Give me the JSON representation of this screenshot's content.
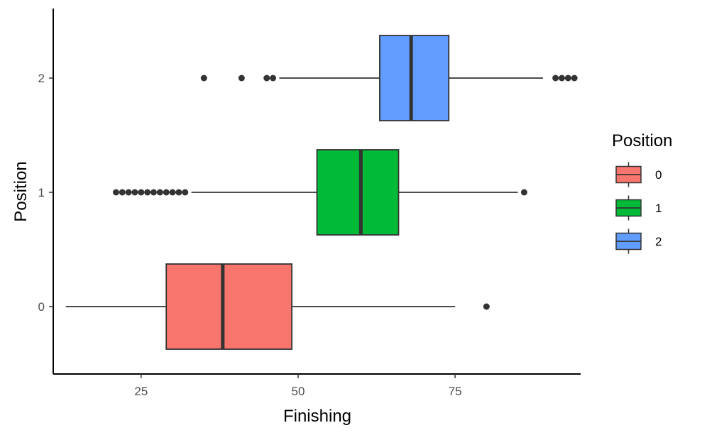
{
  "chart_data": {
    "type": "boxplot",
    "orientation": "horizontal",
    "xlabel": "Finishing",
    "ylabel": "Position",
    "xlim": [
      11,
      95
    ],
    "x_ticks": [
      25,
      50,
      75
    ],
    "y_categories": [
      "0",
      "1",
      "2"
    ],
    "grid": false,
    "legend": {
      "title": "Position",
      "placement": "right",
      "entries": [
        {
          "label": "0",
          "color": "#F8766D"
        },
        {
          "label": "1",
          "color": "#00BA38"
        },
        {
          "label": "2",
          "color": "#619CFF"
        }
      ]
    },
    "series": [
      {
        "category": "0",
        "color": "#F8766D",
        "whisker_low": 13,
        "q1": 29,
        "median": 38,
        "q3": 49,
        "whisker_high": 75,
        "outliers": [
          80
        ]
      },
      {
        "category": "1",
        "color": "#00BA38",
        "whisker_low": 33,
        "q1": 53,
        "median": 60,
        "q3": 66,
        "whisker_high": 85,
        "outliers": [
          21,
          22,
          23,
          24,
          25,
          26,
          27,
          28,
          29,
          30,
          31,
          32,
          86
        ]
      },
      {
        "category": "2",
        "color": "#619CFF",
        "whisker_low": 47,
        "q1": 63,
        "median": 68,
        "q3": 74,
        "whisker_high": 89,
        "outliers": [
          35,
          41,
          45,
          46,
          91,
          92,
          93,
          94
        ]
      }
    ]
  }
}
